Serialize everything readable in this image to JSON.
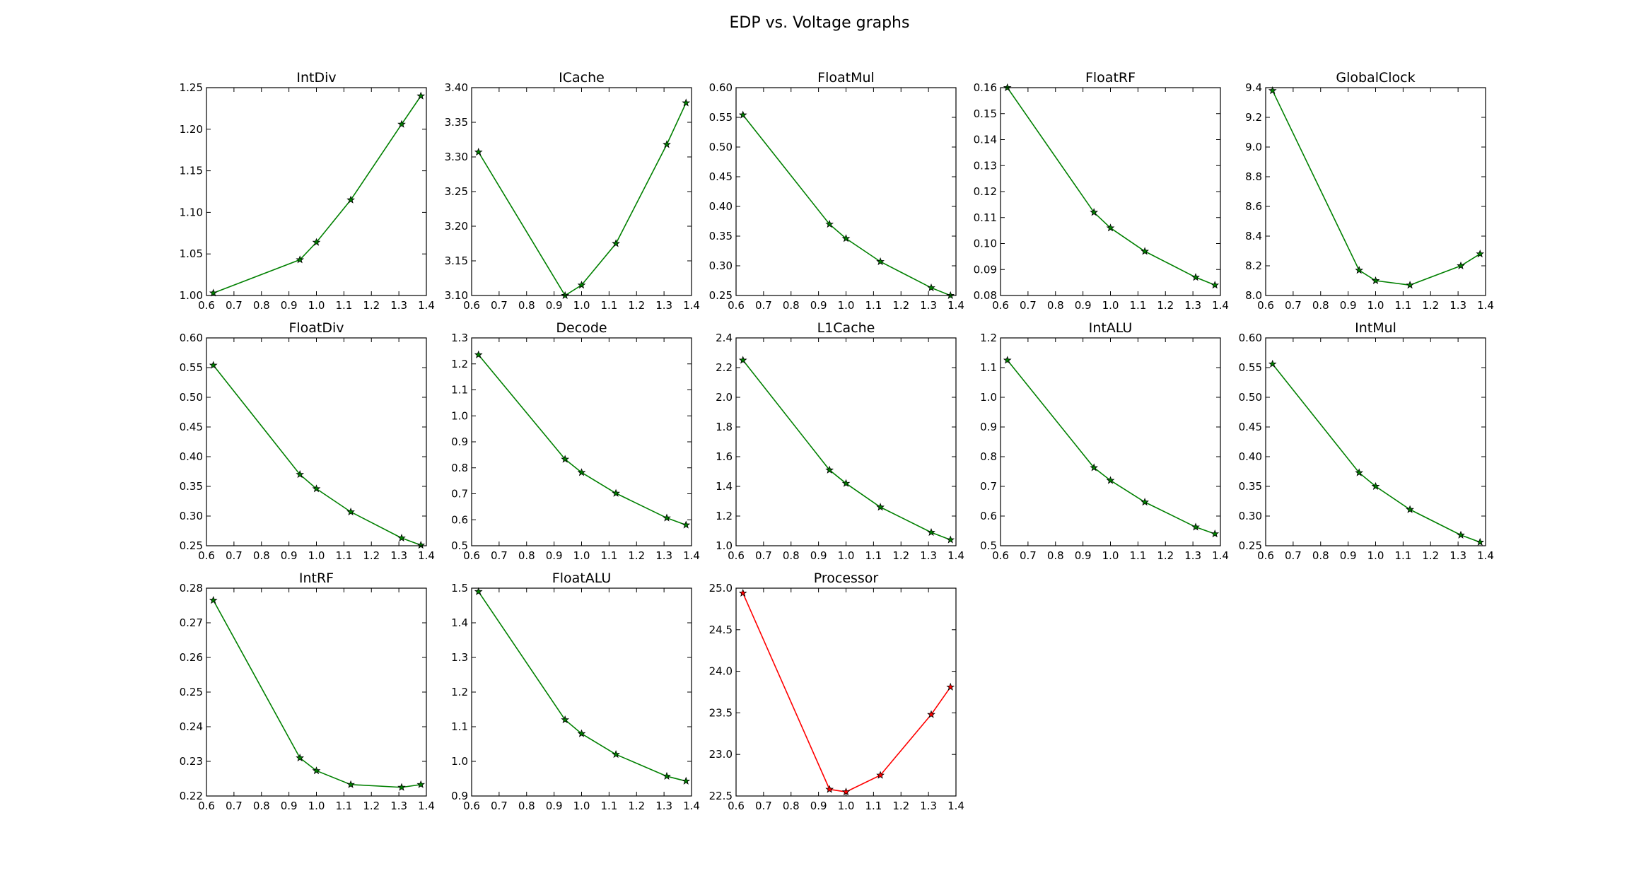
{
  "figure": {
    "title": "EDP vs. Voltage graphs"
  },
  "chart_data": [
    {
      "type": "line",
      "title": "IntDiv",
      "color": "#008000",
      "x": [
        0.625,
        0.94,
        1.0,
        1.125,
        1.31,
        1.38
      ],
      "y": [
        1.003,
        1.043,
        1.064,
        1.115,
        1.206,
        1.24
      ],
      "xlim": [
        0.6,
        1.4
      ],
      "ylim": [
        1.0,
        1.25
      ],
      "xticks": [
        "0.6",
        "0.7",
        "0.8",
        "0.9",
        "1.0",
        "1.1",
        "1.2",
        "1.3",
        "1.4"
      ],
      "yticks": [
        "1.00",
        "1.05",
        "1.10",
        "1.15",
        "1.20",
        "1.25"
      ],
      "marker": "star",
      "grid": false
    },
    {
      "type": "line",
      "title": "ICache",
      "color": "#008000",
      "x": [
        0.625,
        0.94,
        1.0,
        1.125,
        1.31,
        1.38
      ],
      "y": [
        3.307,
        3.1,
        3.115,
        3.175,
        3.318,
        3.378
      ],
      "xlim": [
        0.6,
        1.4
      ],
      "ylim": [
        3.1,
        3.4
      ],
      "xticks": [
        "0.6",
        "0.7",
        "0.8",
        "0.9",
        "1.0",
        "1.1",
        "1.2",
        "1.3",
        "1.4"
      ],
      "yticks": [
        "3.10",
        "3.15",
        "3.20",
        "3.25",
        "3.30",
        "3.35",
        "3.40"
      ],
      "marker": "star",
      "grid": false
    },
    {
      "type": "line",
      "title": "FloatMul",
      "color": "#008000",
      "x": [
        0.625,
        0.94,
        1.0,
        1.125,
        1.31,
        1.38
      ],
      "y": [
        0.554,
        0.37,
        0.346,
        0.307,
        0.263,
        0.25
      ],
      "xlim": [
        0.6,
        1.4
      ],
      "ylim": [
        0.25,
        0.6
      ],
      "xticks": [
        "0.6",
        "0.7",
        "0.8",
        "0.9",
        "1.0",
        "1.1",
        "1.2",
        "1.3",
        "1.4"
      ],
      "yticks": [
        "0.25",
        "0.30",
        "0.35",
        "0.40",
        "0.45",
        "0.50",
        "0.55",
        "0.60"
      ],
      "marker": "star",
      "grid": false
    },
    {
      "type": "line",
      "title": "FloatRF",
      "color": "#008000",
      "x": [
        0.625,
        0.94,
        1.0,
        1.125,
        1.31,
        1.38
      ],
      "y": [
        0.16,
        0.112,
        0.106,
        0.097,
        0.087,
        0.084
      ],
      "xlim": [
        0.6,
        1.4
      ],
      "ylim": [
        0.08,
        0.16
      ],
      "xticks": [
        "0.6",
        "0.7",
        "0.8",
        "0.9",
        "1.0",
        "1.1",
        "1.2",
        "1.3",
        "1.4"
      ],
      "yticks": [
        "0.08",
        "0.09",
        "0.10",
        "0.11",
        "0.12",
        "0.13",
        "0.14",
        "0.15",
        "0.16"
      ],
      "marker": "star",
      "grid": false
    },
    {
      "type": "line",
      "title": "GlobalClock",
      "color": "#008000",
      "x": [
        0.625,
        0.94,
        1.0,
        1.125,
        1.31,
        1.38
      ],
      "y": [
        9.38,
        8.17,
        8.1,
        8.07,
        8.2,
        8.28
      ],
      "xlim": [
        0.6,
        1.4
      ],
      "ylim": [
        8.0,
        9.4
      ],
      "xticks": [
        "0.6",
        "0.7",
        "0.8",
        "0.9",
        "1.0",
        "1.1",
        "1.2",
        "1.3",
        "1.4"
      ],
      "yticks": [
        "8.0",
        "8.2",
        "8.4",
        "8.6",
        "8.8",
        "9.0",
        "9.2",
        "9.4"
      ],
      "marker": "star",
      "grid": false
    },
    {
      "type": "line",
      "title": "FloatDiv",
      "color": "#008000",
      "x": [
        0.625,
        0.94,
        1.0,
        1.125,
        1.31,
        1.38
      ],
      "y": [
        0.554,
        0.37,
        0.346,
        0.307,
        0.263,
        0.251
      ],
      "xlim": [
        0.6,
        1.4
      ],
      "ylim": [
        0.25,
        0.6
      ],
      "xticks": [
        "0.6",
        "0.7",
        "0.8",
        "0.9",
        "1.0",
        "1.1",
        "1.2",
        "1.3",
        "1.4"
      ],
      "yticks": [
        "0.25",
        "0.30",
        "0.35",
        "0.40",
        "0.45",
        "0.50",
        "0.55",
        "0.60"
      ],
      "marker": "star",
      "grid": false
    },
    {
      "type": "line",
      "title": "Decode",
      "color": "#008000",
      "x": [
        0.625,
        0.94,
        1.0,
        1.125,
        1.31,
        1.38
      ],
      "y": [
        1.235,
        0.833,
        0.782,
        0.702,
        0.607,
        0.58
      ],
      "xlim": [
        0.6,
        1.4
      ],
      "ylim": [
        0.5,
        1.3
      ],
      "xticks": [
        "0.6",
        "0.7",
        "0.8",
        "0.9",
        "1.0",
        "1.1",
        "1.2",
        "1.3",
        "1.4"
      ],
      "yticks": [
        "0.5",
        "0.6",
        "0.7",
        "0.8",
        "0.9",
        "1.0",
        "1.1",
        "1.2",
        "1.3"
      ],
      "marker": "star",
      "grid": false
    },
    {
      "type": "line",
      "title": "L1Cache",
      "color": "#008000",
      "x": [
        0.625,
        0.94,
        1.0,
        1.125,
        1.31,
        1.38
      ],
      "y": [
        2.25,
        1.51,
        1.42,
        1.26,
        1.09,
        1.04
      ],
      "xlim": [
        0.6,
        1.4
      ],
      "ylim": [
        1.0,
        2.4
      ],
      "xticks": [
        "0.6",
        "0.7",
        "0.8",
        "0.9",
        "1.0",
        "1.1",
        "1.2",
        "1.3",
        "1.4"
      ],
      "yticks": [
        "1.0",
        "1.2",
        "1.4",
        "1.6",
        "1.8",
        "2.0",
        "2.2",
        "2.4"
      ],
      "marker": "star",
      "grid": false
    },
    {
      "type": "line",
      "title": "IntALU",
      "color": "#008000",
      "x": [
        0.625,
        0.94,
        1.0,
        1.125,
        1.31,
        1.38
      ],
      "y": [
        1.125,
        0.763,
        0.72,
        0.647,
        0.563,
        0.54
      ],
      "xlim": [
        0.6,
        1.4
      ],
      "ylim": [
        0.5,
        1.2
      ],
      "xticks": [
        "0.6",
        "0.7",
        "0.8",
        "0.9",
        "1.0",
        "1.1",
        "1.2",
        "1.3",
        "1.4"
      ],
      "yticks": [
        "0.5",
        "0.6",
        "0.7",
        "0.8",
        "0.9",
        "1.0",
        "1.1",
        "1.2"
      ],
      "marker": "star",
      "grid": false
    },
    {
      "type": "line",
      "title": "IntMul",
      "color": "#008000",
      "x": [
        0.625,
        0.94,
        1.0,
        1.125,
        1.31,
        1.38
      ],
      "y": [
        0.556,
        0.373,
        0.35,
        0.311,
        0.268,
        0.256
      ],
      "xlim": [
        0.6,
        1.4
      ],
      "ylim": [
        0.25,
        0.6
      ],
      "xticks": [
        "0.6",
        "0.7",
        "0.8",
        "0.9",
        "1.0",
        "1.1",
        "1.2",
        "1.3",
        "1.4"
      ],
      "yticks": [
        "0.25",
        "0.30",
        "0.35",
        "0.40",
        "0.45",
        "0.50",
        "0.55",
        "0.60"
      ],
      "marker": "star",
      "grid": false
    },
    {
      "type": "line",
      "title": "IntRF",
      "color": "#008000",
      "x": [
        0.625,
        0.94,
        1.0,
        1.125,
        1.31,
        1.38
      ],
      "y": [
        0.2765,
        0.231,
        0.2273,
        0.2233,
        0.2225,
        0.2233
      ],
      "xlim": [
        0.6,
        1.4
      ],
      "ylim": [
        0.22,
        0.28
      ],
      "xticks": [
        "0.6",
        "0.7",
        "0.8",
        "0.9",
        "1.0",
        "1.1",
        "1.2",
        "1.3",
        "1.4"
      ],
      "yticks": [
        "0.22",
        "0.23",
        "0.24",
        "0.25",
        "0.26",
        "0.27",
        "0.28"
      ],
      "marker": "star",
      "grid": false
    },
    {
      "type": "line",
      "title": "FloatALU",
      "color": "#008000",
      "x": [
        0.625,
        0.94,
        1.0,
        1.125,
        1.31,
        1.38
      ],
      "y": [
        1.49,
        1.12,
        1.08,
        1.02,
        0.957,
        0.943
      ],
      "xlim": [
        0.6,
        1.4
      ],
      "ylim": [
        0.9,
        1.5
      ],
      "xticks": [
        "0.6",
        "0.7",
        "0.8",
        "0.9",
        "1.0",
        "1.1",
        "1.2",
        "1.3",
        "1.4"
      ],
      "yticks": [
        "0.9",
        "1.0",
        "1.1",
        "1.2",
        "1.3",
        "1.4",
        "1.5"
      ],
      "marker": "star",
      "grid": false
    },
    {
      "type": "line",
      "title": "Processor",
      "color": "#ff0000",
      "x": [
        0.625,
        0.94,
        1.0,
        1.125,
        1.31,
        1.38
      ],
      "y": [
        24.94,
        22.58,
        22.55,
        22.75,
        23.48,
        23.81
      ],
      "xlim": [
        0.6,
        1.4
      ],
      "ylim": [
        22.5,
        25.0
      ],
      "xticks": [
        "0.6",
        "0.7",
        "0.8",
        "0.9",
        "1.0",
        "1.1",
        "1.2",
        "1.3",
        "1.4"
      ],
      "yticks": [
        "22.5",
        "23.0",
        "23.5",
        "24.0",
        "24.5",
        "25.0"
      ],
      "marker": "star",
      "grid": false
    }
  ]
}
